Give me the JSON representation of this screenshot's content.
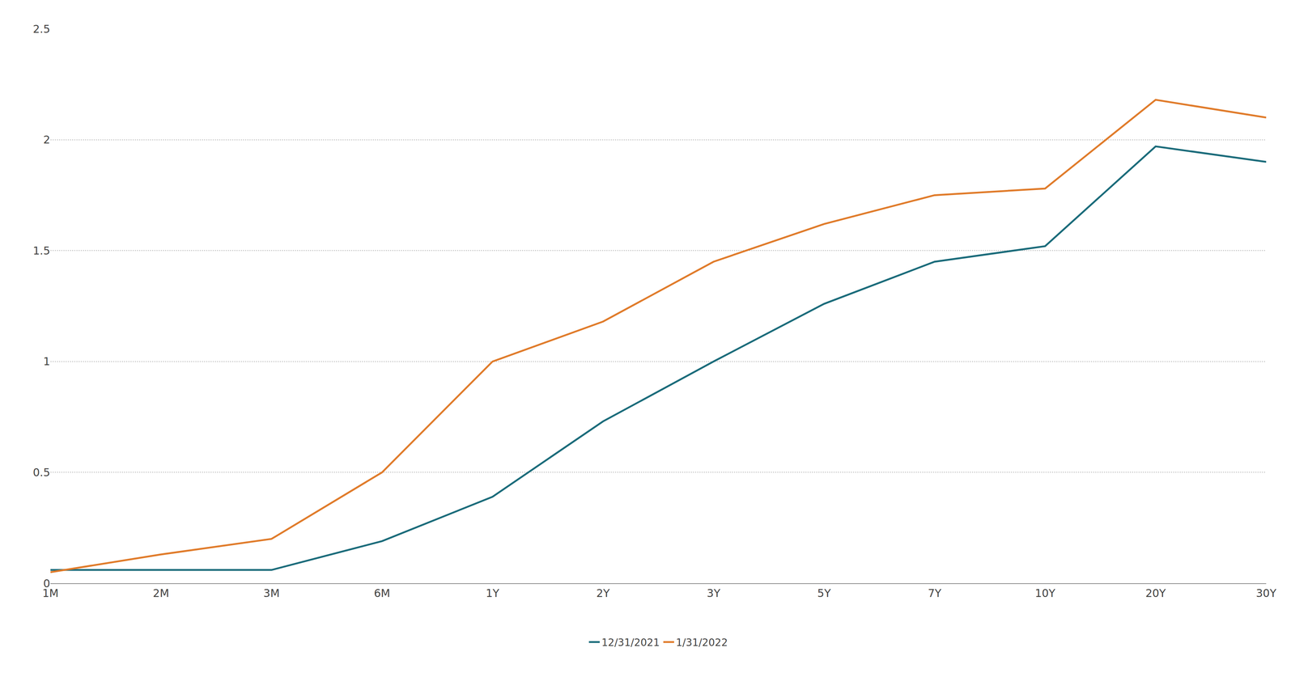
{
  "chart_data": {
    "type": "line",
    "categories": [
      "1M",
      "2M",
      "3M",
      "6M",
      "1Y",
      "2Y",
      "3Y",
      "5Y",
      "7Y",
      "10Y",
      "20Y",
      "30Y"
    ],
    "series": [
      {
        "name": "12/31/2021",
        "color": "#1a6b7a",
        "values": [
          0.06,
          0.06,
          0.06,
          0.19,
          0.39,
          0.73,
          1.0,
          1.26,
          1.45,
          1.52,
          1.97,
          1.9
        ]
      },
      {
        "name": "1/31/2022",
        "color": "#e07b2a",
        "values": [
          0.05,
          0.13,
          0.2,
          0.5,
          1.0,
          1.18,
          1.45,
          1.62,
          1.75,
          1.78,
          2.18,
          2.1
        ]
      }
    ],
    "ylim": [
      0,
      2.5
    ],
    "yticks": [
      0,
      0.5,
      1,
      1.5,
      2,
      2.5
    ],
    "grid": true,
    "legend": "bottom"
  }
}
